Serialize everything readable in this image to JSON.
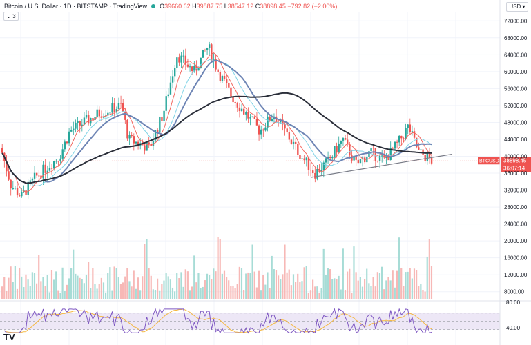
{
  "header": {
    "symbol_title": "Bitcoin / U.S. Dollar · 1D · BITSTAMP · TradingView",
    "ohlc": {
      "o_label": "O",
      "o": "39660.62",
      "h_label": "H",
      "h": "39887.75",
      "l_label": "L",
      "l": "38547.12",
      "c_label": "C",
      "c": "38898.45",
      "change": "−792.82 (−2.00%)"
    },
    "collapse_label": "3",
    "currency": "USD ▾"
  },
  "price_tag": {
    "symbol": "BTCUSD",
    "price": "38898.45",
    "countdown": "36:07:14"
  },
  "logo_text": "TV",
  "colors": {
    "up": "#26a69a",
    "down": "#ef5350",
    "ma_fast": "#f2675f",
    "ma_mid": "#6d84b4",
    "ma_slow_light": "#7fd3e6",
    "ma_long": "#2a2e39",
    "trendline": "#787b86",
    "rsi_line": "#7e57c2",
    "rsi_ma": "#f5b942",
    "rsi_band": "#ede7f6"
  },
  "chart_data": {
    "type": "candlestick",
    "price_axis": {
      "ticks": [
        72000,
        68000,
        64000,
        60000,
        56000,
        52000,
        48000,
        44000,
        40000,
        36000,
        32000,
        28000,
        24000,
        20000,
        16000,
        12000,
        8000
      ]
    },
    "rsi_axis": {
      "ticks": [
        "80.00",
        "40.00"
      ],
      "band": [
        30,
        70
      ]
    },
    "last_price": 38898.45,
    "candles_approx": {
      "start_price": 42000,
      "low_point": 29500,
      "peak": 68800,
      "range_low": 35000,
      "end_price": 38898.45,
      "count": 200
    }
  }
}
